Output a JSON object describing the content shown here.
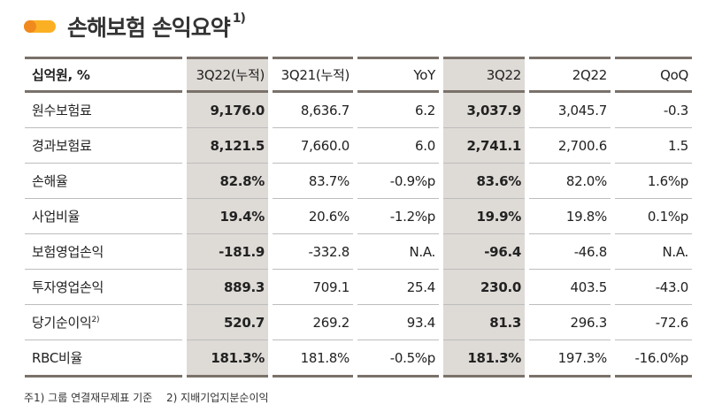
{
  "title": "손해보험 손익요약",
  "title_note": "1)",
  "colors": {
    "accent_orange": "#f08a1e",
    "accent_yellow": "#fbb024",
    "shade": "#dedad6",
    "rule": "#7a716a"
  },
  "headers": [
    "십억원, %",
    "3Q22(누적)",
    "3Q21(누적)",
    "YoY",
    "3Q22",
    "2Q22",
    "QoQ"
  ],
  "rows": [
    {
      "label": "원수보험료",
      "values": [
        "9,176.0",
        "8,636.7",
        "6.2",
        "3,037.9",
        "3,045.7",
        "-0.3"
      ]
    },
    {
      "label": "경과보험료",
      "values": [
        "8,121.5",
        "7,660.0",
        "6.0",
        "2,741.1",
        "2,700.6",
        "1.5"
      ]
    },
    {
      "label": "손해율",
      "values": [
        "82.8%",
        "83.7%",
        "-0.9%p",
        "83.6%",
        "82.0%",
        "1.6%p"
      ]
    },
    {
      "label": "사업비율",
      "values": [
        "19.4%",
        "20.6%",
        "-1.2%p",
        "19.9%",
        "19.8%",
        "0.1%p"
      ]
    },
    {
      "label": "보험영업손익",
      "values": [
        "-181.9",
        "-332.8",
        "N.A.",
        "-96.4",
        "-46.8",
        "N.A."
      ]
    },
    {
      "label": "투자영업손익",
      "values": [
        "889.3",
        "709.1",
        "25.4",
        "230.0",
        "403.5",
        "-43.0"
      ]
    },
    {
      "label": "당기순이익",
      "note": "2)",
      "values": [
        "520.7",
        "269.2",
        "93.4",
        "81.3",
        "296.3",
        "-72.6"
      ]
    },
    {
      "label": "RBC비율",
      "values": [
        "181.3%",
        "181.8%",
        "-0.5%p",
        "181.3%",
        "197.3%",
        "-16.0%p"
      ]
    }
  ],
  "footnotes": [
    "주1) 그룹 연결재무제표 기준",
    "2) 지배기업지분순이익"
  ]
}
